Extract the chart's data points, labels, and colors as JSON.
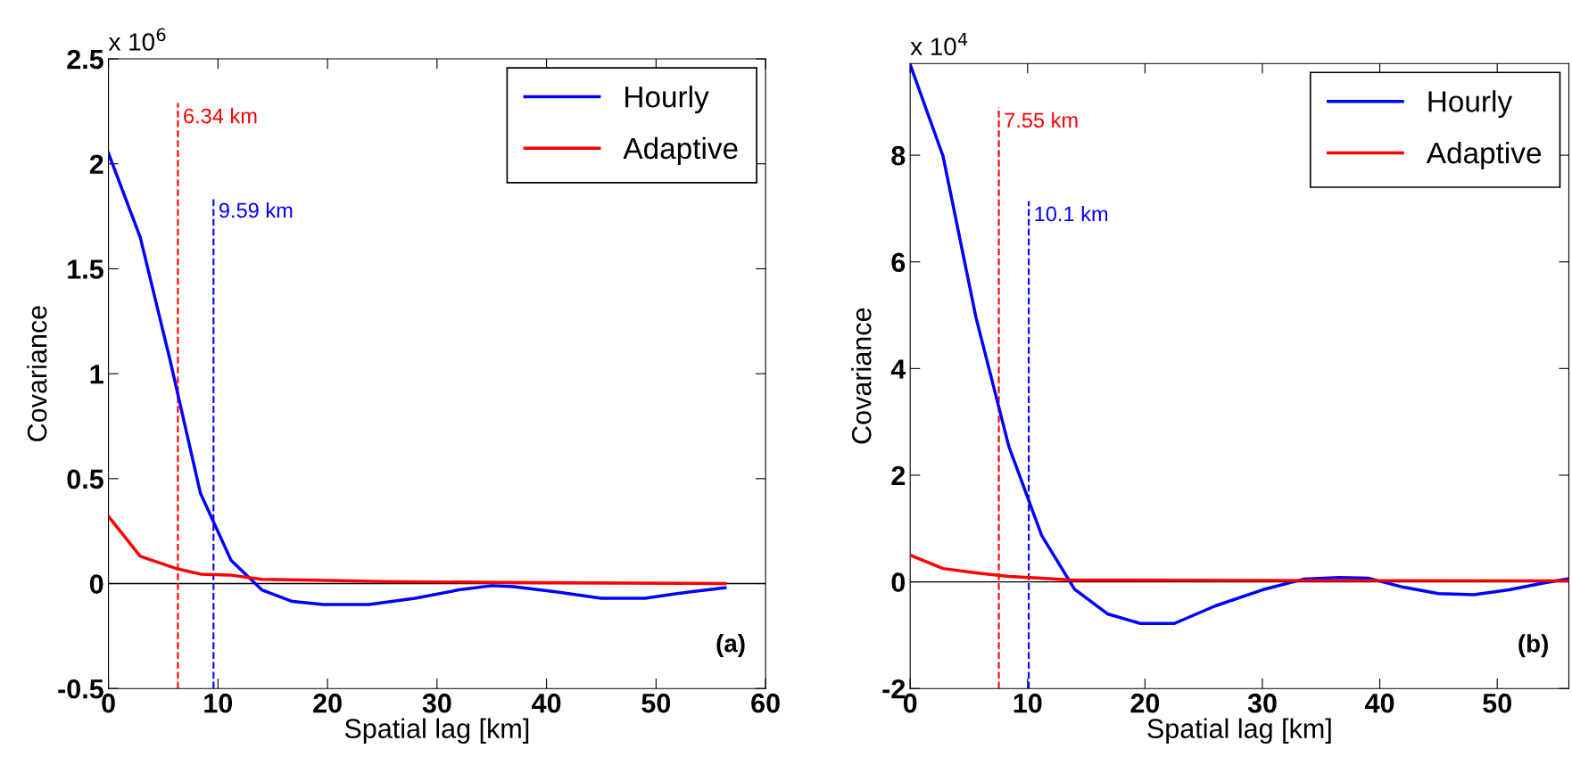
{
  "chart_data": [
    {
      "type": "line",
      "xlabel": "Spatial lag [km]",
      "ylabel": "Covariance",
      "xlim": [
        0,
        60
      ],
      "xticks": [
        0,
        10,
        20,
        30,
        40,
        50,
        60
      ],
      "ylim": [
        -0.5,
        2.5
      ],
      "yticks": [
        -0.5,
        0,
        0.5,
        1,
        1.5,
        2,
        2.5
      ],
      "legend": "top right",
      "grid": false,
      "series": [
        {
          "name": "Hourly",
          "color": "#0000ff",
          "x": [
            0,
            2.9,
            5.6,
            8.4,
            11.2,
            14,
            16.8,
            19.6,
            23.8,
            28,
            32,
            35,
            37,
            41,
            45,
            49,
            53,
            56.3
          ],
          "values": [
            2.05,
            1.65,
            1.07,
            0.43,
            0.11,
            -0.03,
            -0.085,
            -0.1,
            -0.1,
            -0.07,
            -0.03,
            -0.01,
            -0.015,
            -0.04,
            -0.07,
            -0.07,
            -0.04,
            -0.02
          ]
        },
        {
          "name": "Adaptive",
          "color": "#ff0000",
          "x": [
            0,
            2.9,
            6.3,
            8.4,
            11.2,
            14,
            20,
            25,
            36,
            56.3
          ],
          "values": [
            0.32,
            0.13,
            0.07,
            0.045,
            0.04,
            0.02,
            0.015,
            0.01,
            0.005,
            0
          ]
        }
      ],
      "ref_lines": [
        {
          "axis": "y",
          "value": 0,
          "color": "#000000",
          "line_style": "solid"
        },
        {
          "axis": "x",
          "value": 6.34,
          "label": "6.34 km",
          "color": "#ff0000",
          "line_style": "dashed"
        },
        {
          "axis": "x",
          "value": 9.59,
          "label": "9.59 km",
          "color": "#0000ff",
          "line_style": "dashed"
        }
      ],
      "annotations": [
        "x 10$^{6}$",
        "(a)"
      ]
    },
    {
      "type": "line",
      "xlabel": "Spatial lag [km]",
      "ylabel": "Covariance",
      "xlim": [
        0,
        56.1
      ],
      "xticks": [
        0,
        10,
        20,
        30,
        40,
        50
      ],
      "ylim": [
        -2,
        9.72
      ],
      "yticks": [
        -2,
        0,
        2,
        4,
        6,
        8
      ],
      "legend": "top right",
      "grid": false,
      "series": [
        {
          "name": "Hourly",
          "color": "#0000ff",
          "x": [
            0,
            2.8,
            5.6,
            8.4,
            11.2,
            14,
            16.8,
            19.6,
            22.5,
            26,
            30,
            33.5,
            36.5,
            39,
            42,
            45,
            48,
            51,
            54,
            56.1
          ],
          "values": [
            9.7,
            7.98,
            4.96,
            2.54,
            0.87,
            -0.14,
            -0.6,
            -0.78,
            -0.78,
            -0.45,
            -0.15,
            0.05,
            0.08,
            0.07,
            -0.1,
            -0.22,
            -0.24,
            -0.15,
            -0.02,
            0.06
          ]
        },
        {
          "name": "Adaptive",
          "color": "#ff0000",
          "x": [
            0,
            2.8,
            5.6,
            8.4,
            11.2,
            14,
            56.1
          ],
          "values": [
            0.5,
            0.25,
            0.17,
            0.1,
            0.07,
            0.03,
            0.02
          ]
        }
      ],
      "ref_lines": [
        {
          "axis": "y",
          "value": 0,
          "color": "#000000",
          "line_style": "solid"
        },
        {
          "axis": "x",
          "value": 7.55,
          "label": "7.55 km",
          "color": "#ff0000",
          "line_style": "dashed"
        },
        {
          "axis": "x",
          "value": 10.1,
          "label": "10.1 km",
          "color": "#0000ff",
          "line_style": "dashed"
        }
      ],
      "annotations": [
        "x 10$^{4}$",
        "(b)"
      ]
    }
  ]
}
